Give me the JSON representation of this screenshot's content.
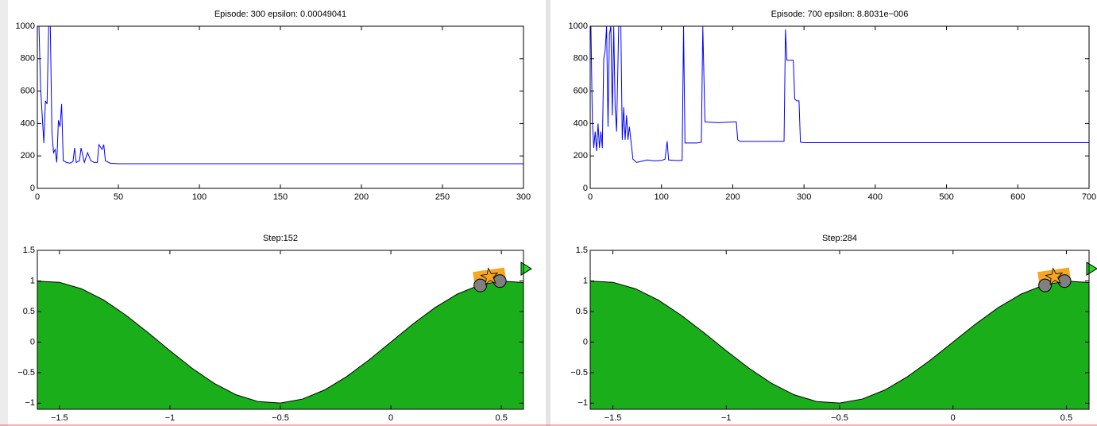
{
  "chart_data": [
    {
      "type": "line",
      "title": "Episode: 300 epsilon: 0.00049041",
      "color": "#0000ff",
      "xlim": [
        0,
        300
      ],
      "xticks": [
        0,
        50,
        100,
        150,
        200,
        250,
        300
      ],
      "ylim": [
        0,
        1000
      ],
      "yticks": [
        0,
        200,
        400,
        600,
        800,
        1000
      ],
      "x": [
        1,
        2,
        3,
        4,
        5,
        6,
        7,
        8,
        9,
        10,
        11,
        12,
        13,
        14,
        15,
        16,
        18,
        20,
        22,
        23,
        24,
        26,
        27,
        29,
        31,
        33,
        35,
        37,
        38,
        40,
        41,
        42,
        45,
        50,
        100,
        150,
        200,
        250,
        300
      ],
      "values": [
        1000,
        620,
        450,
        280,
        540,
        520,
        1000,
        1000,
        350,
        220,
        240,
        160,
        420,
        380,
        520,
        170,
        160,
        155,
        165,
        250,
        160,
        170,
        250,
        160,
        220,
        170,
        160,
        160,
        270,
        240,
        270,
        170,
        155,
        152,
        152,
        152,
        152,
        152,
        152
      ]
    },
    {
      "type": "line",
      "title": "Episode: 700 epsilon: 8.8031e−006",
      "color": "#0000ff",
      "xlim": [
        0,
        700
      ],
      "xticks": [
        0,
        100,
        200,
        300,
        400,
        500,
        600,
        700
      ],
      "ylim": [
        0,
        1000
      ],
      "yticks": [
        0,
        200,
        400,
        600,
        800,
        1000
      ],
      "x": [
        1,
        3,
        5,
        7,
        9,
        11,
        13,
        15,
        17,
        19,
        21,
        23,
        25,
        27,
        29,
        31,
        33,
        35,
        37,
        40,
        43,
        45,
        47,
        49,
        51,
        53,
        55,
        60,
        65,
        70,
        80,
        90,
        100,
        105,
        108,
        110,
        120,
        129,
        131,
        133,
        150,
        156,
        158,
        161,
        180,
        200,
        205,
        207,
        210,
        250,
        272,
        274,
        276,
        285,
        287,
        290,
        293,
        295,
        300,
        400,
        500,
        600,
        700
      ],
      "values": [
        1000,
        420,
        250,
        350,
        230,
        400,
        250,
        350,
        250,
        800,
        850,
        1000,
        380,
        950,
        1000,
        450,
        1000,
        500,
        350,
        1000,
        1000,
        300,
        500,
        300,
        450,
        300,
        380,
        180,
        160,
        165,
        175,
        170,
        172,
        180,
        290,
        175,
        172,
        172,
        1000,
        280,
        280,
        285,
        1000,
        410,
        405,
        410,
        410,
        300,
        290,
        290,
        290,
        980,
        790,
        790,
        550,
        540,
        540,
        285,
        282,
        282,
        282,
        282,
        282
      ]
    },
    {
      "type": "area",
      "title": "Step:152",
      "color": "#1aaf1a",
      "xlim": [
        -1.6,
        0.6
      ],
      "xticks": [
        {
          "value": -1.5,
          "label": "−1.5"
        },
        {
          "value": -1,
          "label": "−1"
        },
        {
          "value": -0.5,
          "label": "−0.5"
        },
        0,
        0.5
      ],
      "ylim": [
        -1.1,
        1.5
      ],
      "yticks": [
        {
          "value": -1,
          "label": "−1"
        },
        {
          "value": -0.5,
          "label": "−0.5"
        },
        0,
        0.5,
        1,
        1.5
      ],
      "x": [
        -1.6,
        -1.5,
        -1.4,
        -1.3,
        -1.2,
        -1.1,
        -1.0,
        -0.9,
        -0.8,
        -0.7,
        -0.6,
        -0.5,
        -0.4,
        -0.3,
        -0.2,
        -0.1,
        0,
        0.1,
        0.2,
        0.3,
        0.4,
        0.5,
        0.6
      ],
      "values": [
        0.9962,
        0.9775,
        0.8716,
        0.6878,
        0.4425,
        0.1577,
        -0.1411,
        -0.4274,
        -0.6755,
        -0.8632,
        -0.9738,
        -0.9975,
        -0.932,
        -0.7833,
        -0.5646,
        -0.2955,
        0,
        0.2955,
        0.5646,
        0.7833,
        0.932,
        0.9975,
        0.9738
      ],
      "car": {
        "x": 0.45,
        "y": 0.976
      },
      "goal": {
        "x": 0.6,
        "y": 1.2
      }
    },
    {
      "type": "area",
      "title": "Step:284",
      "color": "#1aaf1a",
      "xlim": [
        -1.6,
        0.6
      ],
      "xticks": [
        {
          "value": -1.5,
          "label": "−1.5"
        },
        {
          "value": -1,
          "label": "−1"
        },
        {
          "value": -0.5,
          "label": "−0.5"
        },
        0,
        0.5
      ],
      "ylim": [
        -1.1,
        1.5
      ],
      "yticks": [
        {
          "value": -1,
          "label": "−1"
        },
        {
          "value": -0.5,
          "label": "−0.5"
        },
        0,
        0.5,
        1,
        1.5
      ],
      "x": [
        -1.6,
        -1.5,
        -1.4,
        -1.3,
        -1.2,
        -1.1,
        -1.0,
        -0.9,
        -0.8,
        -0.7,
        -0.6,
        -0.5,
        -0.4,
        -0.3,
        -0.2,
        -0.1,
        0,
        0.1,
        0.2,
        0.3,
        0.4,
        0.5,
        0.6
      ],
      "values": [
        0.9962,
        0.9775,
        0.8716,
        0.6878,
        0.4425,
        0.1577,
        -0.1411,
        -0.4274,
        -0.6755,
        -0.8632,
        -0.9738,
        -0.9975,
        -0.932,
        -0.7833,
        -0.5646,
        -0.2955,
        0,
        0.2955,
        0.5646,
        0.7833,
        0.932,
        0.9975,
        0.9738
      ],
      "car": {
        "x": 0.45,
        "y": 0.976
      },
      "goal": {
        "x": 0.6,
        "y": 1.2
      }
    }
  ]
}
